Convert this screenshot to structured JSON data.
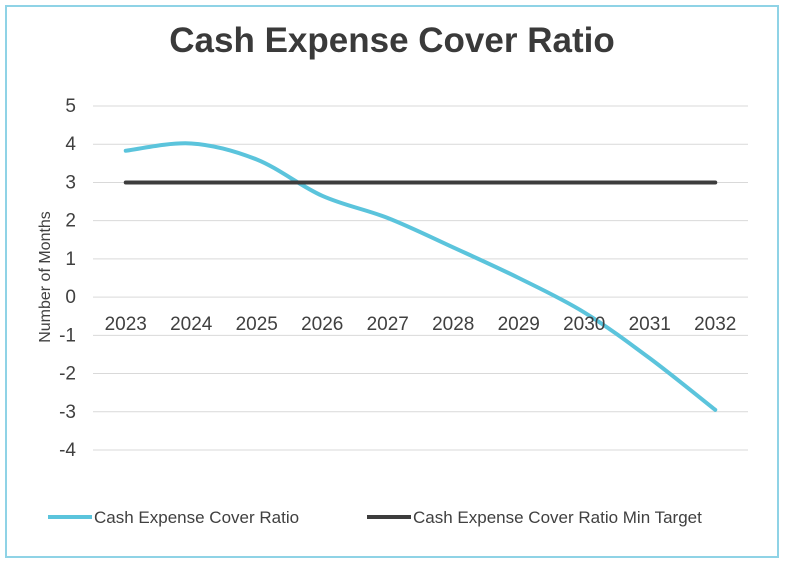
{
  "chart_data": {
    "type": "line",
    "title": "Cash Expense Cover Ratio",
    "xlabel": "",
    "ylabel": "Number  of Months",
    "categories": [
      "2023",
      "2024",
      "2025",
      "2026",
      "2027",
      "2028",
      "2029",
      "2030",
      "2031",
      "2032"
    ],
    "ylim": [
      -4,
      5
    ],
    "yticks": [
      "5",
      "4",
      "3",
      "2",
      "1",
      "0",
      "-1",
      "-2",
      "-3",
      "-4"
    ],
    "grid": true,
    "legend_position": "bottom",
    "series": [
      {
        "name": "Cash Expense Cover Ratio",
        "color": "#5bc4dc",
        "values": [
          3.83,
          4.02,
          3.6,
          2.65,
          2.07,
          1.3,
          0.5,
          -0.4,
          -1.6,
          -2.95
        ]
      },
      {
        "name": "Cash Expense Cover Ratio Min Target",
        "color": "#3d3d3d",
        "values": [
          3,
          3,
          3,
          3,
          3,
          3,
          3,
          3,
          3,
          3
        ]
      }
    ]
  }
}
